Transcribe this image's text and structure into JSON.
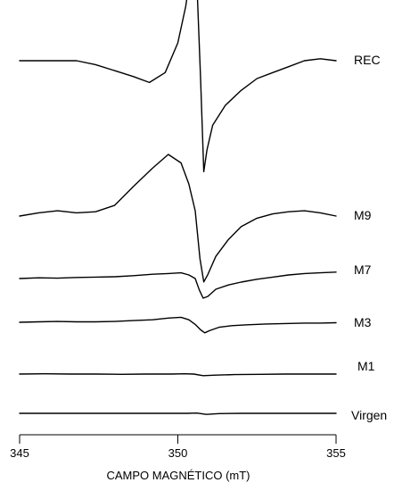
{
  "chart_data": {
    "type": "line",
    "title": "",
    "xlabel": "CAMPO MAGNÉTICO (mT)",
    "ylabel": "",
    "xlim": [
      345,
      355
    ],
    "x_ticks": [
      345,
      350,
      355
    ],
    "grid": false,
    "legend": "none",
    "series": [
      {
        "name": "REC",
        "points": [
          [
            345.0,
            0.0
          ],
          [
            345.6,
            0.0
          ],
          [
            346.2,
            0.0
          ],
          [
            346.8,
            0.0
          ],
          [
            347.4,
            -0.04
          ],
          [
            348.0,
            -0.1
          ],
          [
            348.6,
            -0.16
          ],
          [
            349.1,
            -0.22
          ],
          [
            349.6,
            -0.12
          ],
          [
            350.0,
            0.18
          ],
          [
            350.25,
            0.55
          ],
          [
            350.45,
            1.0
          ],
          [
            350.6,
            0.8
          ],
          [
            350.72,
            -0.2
          ],
          [
            350.82,
            -1.12
          ],
          [
            350.92,
            -0.9
          ],
          [
            351.1,
            -0.65
          ],
          [
            351.5,
            -0.45
          ],
          [
            352.0,
            -0.3
          ],
          [
            352.5,
            -0.18
          ],
          [
            353.0,
            -0.12
          ],
          [
            353.5,
            -0.06
          ],
          [
            354.0,
            0.0
          ],
          [
            354.5,
            0.02
          ],
          [
            355.0,
            0.0
          ]
        ]
      },
      {
        "name": "M9",
        "points": [
          [
            345.0,
            0.0
          ],
          [
            345.6,
            0.03
          ],
          [
            346.2,
            0.05
          ],
          [
            346.8,
            0.03
          ],
          [
            347.4,
            0.04
          ],
          [
            348.0,
            0.1
          ],
          [
            348.6,
            0.28
          ],
          [
            349.2,
            0.45
          ],
          [
            349.7,
            0.58
          ],
          [
            350.1,
            0.5
          ],
          [
            350.35,
            0.3
          ],
          [
            350.55,
            0.05
          ],
          [
            350.7,
            -0.4
          ],
          [
            350.82,
            -0.62
          ],
          [
            350.95,
            -0.55
          ],
          [
            351.2,
            -0.38
          ],
          [
            351.6,
            -0.22
          ],
          [
            352.0,
            -0.1
          ],
          [
            352.5,
            -0.02
          ],
          [
            353.0,
            0.02
          ],
          [
            353.5,
            0.04
          ],
          [
            354.0,
            0.05
          ],
          [
            354.5,
            0.03
          ],
          [
            355.0,
            0.0
          ]
        ]
      },
      {
        "name": "M7",
        "points": [
          [
            345.0,
            0.0
          ],
          [
            345.6,
            0.02
          ],
          [
            346.2,
            0.01
          ],
          [
            346.8,
            0.03
          ],
          [
            347.4,
            0.04
          ],
          [
            348.0,
            0.05
          ],
          [
            348.6,
            0.08
          ],
          [
            349.2,
            0.12
          ],
          [
            349.7,
            0.14
          ],
          [
            350.1,
            0.16
          ],
          [
            350.35,
            0.1
          ],
          [
            350.55,
            0.0
          ],
          [
            350.68,
            -0.32
          ],
          [
            350.8,
            -0.55
          ],
          [
            350.95,
            -0.5
          ],
          [
            351.2,
            -0.3
          ],
          [
            351.6,
            -0.18
          ],
          [
            352.0,
            -0.1
          ],
          [
            352.5,
            -0.02
          ],
          [
            353.0,
            0.04
          ],
          [
            353.5,
            0.1
          ],
          [
            354.0,
            0.14
          ],
          [
            354.5,
            0.16
          ],
          [
            355.0,
            0.18
          ]
        ]
      },
      {
        "name": "M3",
        "points": [
          [
            345.0,
            0.0
          ],
          [
            345.6,
            0.01
          ],
          [
            346.2,
            0.02
          ],
          [
            346.8,
            0.01
          ],
          [
            347.4,
            0.01
          ],
          [
            348.0,
            0.02
          ],
          [
            348.6,
            0.04
          ],
          [
            349.2,
            0.06
          ],
          [
            349.7,
            0.1
          ],
          [
            350.1,
            0.12
          ],
          [
            350.35,
            0.06
          ],
          [
            350.55,
            -0.05
          ],
          [
            350.72,
            -0.18
          ],
          [
            350.85,
            -0.25
          ],
          [
            351.0,
            -0.2
          ],
          [
            351.3,
            -0.12
          ],
          [
            351.7,
            -0.08
          ],
          [
            352.2,
            -0.06
          ],
          [
            352.8,
            -0.04
          ],
          [
            353.4,
            -0.03
          ],
          [
            354.0,
            -0.02
          ],
          [
            354.5,
            -0.02
          ],
          [
            355.0,
            -0.01
          ]
        ]
      },
      {
        "name": "M1",
        "points": [
          [
            345.0,
            0.0
          ],
          [
            345.8,
            0.01
          ],
          [
            346.6,
            0.0
          ],
          [
            347.4,
            0.0
          ],
          [
            348.2,
            -0.01
          ],
          [
            349.0,
            0.0
          ],
          [
            349.8,
            0.0
          ],
          [
            350.2,
            0.01
          ],
          [
            350.5,
            0.0
          ],
          [
            350.8,
            -0.06
          ],
          [
            351.2,
            -0.04
          ],
          [
            351.8,
            -0.02
          ],
          [
            352.6,
            -0.01
          ],
          [
            353.4,
            0.0
          ],
          [
            354.2,
            0.0
          ],
          [
            355.0,
            0.0
          ]
        ]
      },
      {
        "name": "Virgen",
        "points": [
          [
            345.0,
            0.0
          ],
          [
            345.8,
            0.0
          ],
          [
            346.6,
            0.0
          ],
          [
            347.4,
            0.0
          ],
          [
            348.2,
            0.0
          ],
          [
            349.0,
            0.0
          ],
          [
            349.8,
            0.0
          ],
          [
            350.3,
            0.0
          ],
          [
            350.6,
            0.01
          ],
          [
            350.9,
            -0.04
          ],
          [
            351.3,
            -0.01
          ],
          [
            352.0,
            0.0
          ],
          [
            352.8,
            0.0
          ],
          [
            353.6,
            0.0
          ],
          [
            354.4,
            0.0
          ],
          [
            355.0,
            0.0
          ]
        ]
      }
    ]
  }
}
